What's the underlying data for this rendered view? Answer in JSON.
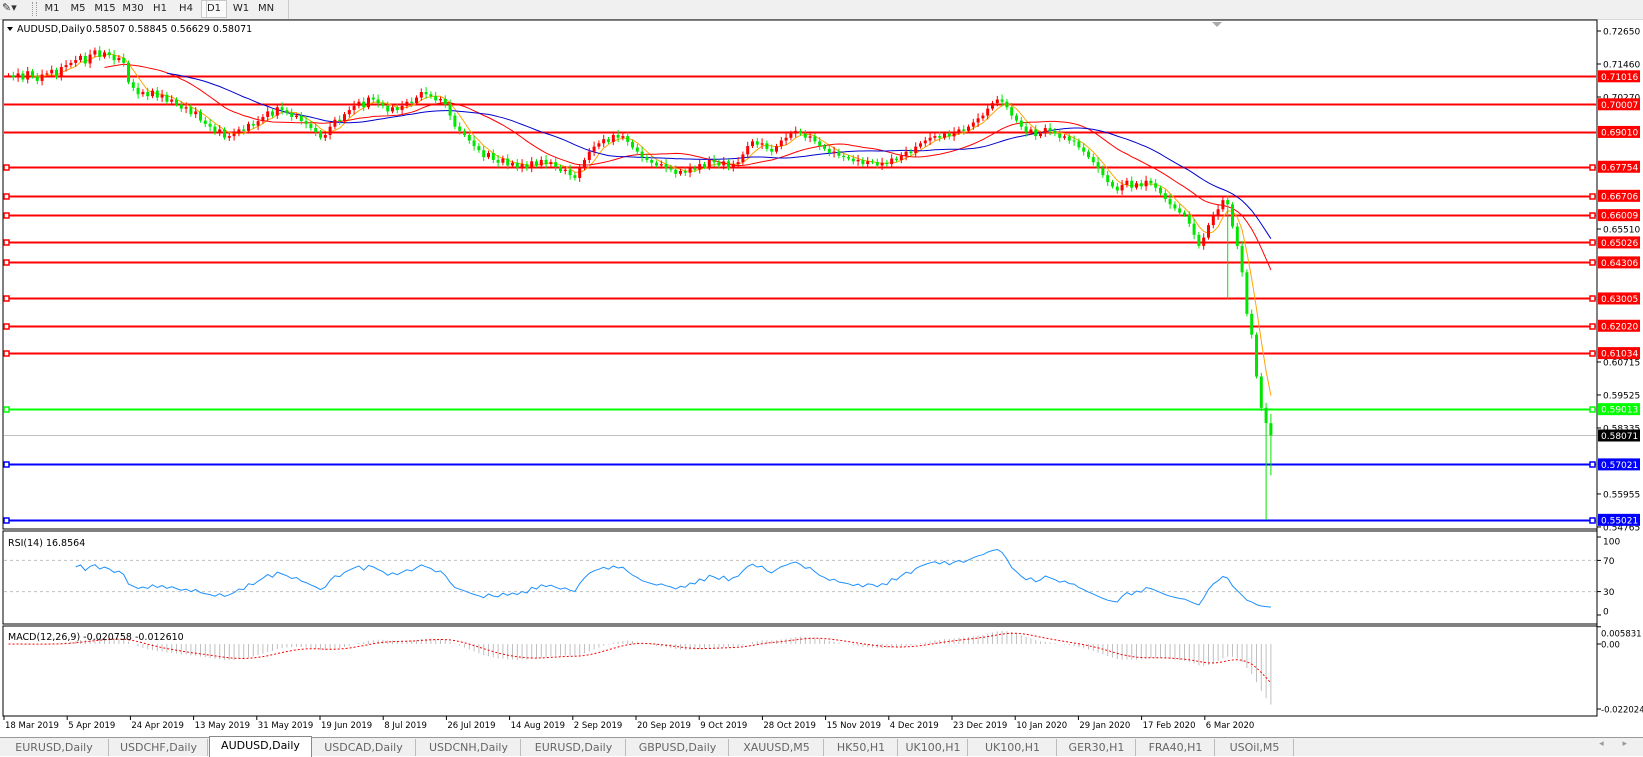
{
  "toolbar": {
    "tool_icon": "line-drawing-tool-icon",
    "timeframes": [
      "M1",
      "M5",
      "M15",
      "M30",
      "H1",
      "H4",
      "D1",
      "W1",
      "MN"
    ],
    "active_timeframe": "D1"
  },
  "chart": {
    "header": {
      "symbol": "AUDUSD,Daily",
      "ohlc": "0.58507 0.58845 0.56629 0.58071"
    },
    "last_bar": {
      "open": 0.58507,
      "high": 0.58845,
      "low": 0.56629,
      "close": 0.58071
    },
    "price_axis_ticks": [
      "0.72650",
      "0.71460",
      "0.70270",
      "0.65510",
      "0.60715",
      "0.59525",
      "0.58335",
      "0.55955",
      "0.54765"
    ],
    "price_range": [
      0.54765,
      0.7265
    ],
    "current_price": {
      "label": "0.58071",
      "color": "#000000"
    },
    "levels": [
      {
        "label": "0.71016",
        "color": "#ff0000",
        "markers": false
      },
      {
        "label": "0.70007",
        "color": "#ff0000",
        "markers": false
      },
      {
        "label": "0.69010",
        "color": "#ff0000",
        "markers": false
      },
      {
        "label": "0.67754",
        "color": "#ff0000",
        "markers": true
      },
      {
        "label": "0.66706",
        "color": "#ff0000",
        "markers": true
      },
      {
        "label": "0.66009",
        "color": "#ff0000",
        "markers": true
      },
      {
        "label": "0.65026",
        "color": "#ff0000",
        "markers": true
      },
      {
        "label": "0.64306",
        "color": "#ff0000",
        "markers": true
      },
      {
        "label": "0.63005",
        "color": "#ff0000",
        "markers": true
      },
      {
        "label": "0.62020",
        "color": "#ff0000",
        "markers": true
      },
      {
        "label": "0.61034",
        "color": "#ff0000",
        "markers": true
      },
      {
        "label": "0.59013",
        "color": "#00ff00",
        "markers": true
      },
      {
        "label": "0.57021",
        "color": "#0000ff",
        "markers": true
      },
      {
        "label": "0.55021",
        "color": "#0000ff",
        "markers": true
      }
    ],
    "candle_colors": {
      "bull": "#ff0000",
      "bear": "#00e600"
    },
    "moving_averages": [
      {
        "period": 5,
        "color": "#ffa500"
      },
      {
        "period": 21,
        "color": "#ff0000"
      },
      {
        "period": 34,
        "color": "#0000cc"
      }
    ],
    "closes": [
      0.7105,
      0.7098,
      0.7112,
      0.709,
      0.712,
      0.7101,
      0.7085,
      0.7108,
      0.7112,
      0.7125,
      0.7098,
      0.7135,
      0.7142,
      0.715,
      0.716,
      0.7175,
      0.7148,
      0.718,
      0.7195,
      0.7172,
      0.7188,
      0.7178,
      0.716,
      0.7168,
      0.715,
      0.708,
      0.706,
      0.7037,
      0.7045,
      0.703,
      0.705,
      0.7025,
      0.7035,
      0.701,
      0.7018,
      0.7,
      0.6985,
      0.699,
      0.6965,
      0.6975,
      0.6942,
      0.693,
      0.692,
      0.69,
      0.691,
      0.688,
      0.6886,
      0.6895,
      0.691,
      0.6905,
      0.693,
      0.6924,
      0.694,
      0.6955,
      0.6975,
      0.696,
      0.699,
      0.698,
      0.697,
      0.6955,
      0.696,
      0.694,
      0.693,
      0.6915,
      0.69,
      0.688,
      0.689,
      0.692,
      0.6945,
      0.694,
      0.6965,
      0.698,
      0.6995,
      0.701,
      0.699,
      0.7025,
      0.7018,
      0.7005,
      0.6995,
      0.6975,
      0.699,
      0.698,
      0.6995,
      0.701,
      0.7005,
      0.7025,
      0.7045,
      0.7037,
      0.703,
      0.7015,
      0.702,
      0.7,
      0.696,
      0.692,
      0.6905,
      0.689,
      0.687,
      0.685,
      0.6835,
      0.681,
      0.6825,
      0.68,
      0.679,
      0.6805,
      0.678,
      0.679,
      0.6772,
      0.6785,
      0.677,
      0.6795,
      0.678,
      0.68,
      0.6785,
      0.6792,
      0.6775,
      0.676,
      0.6765,
      0.6745,
      0.6735,
      0.677,
      0.68,
      0.683,
      0.6848,
      0.686,
      0.6875,
      0.6865,
      0.689,
      0.688,
      0.6886,
      0.6865,
      0.6845,
      0.683,
      0.681,
      0.68,
      0.679,
      0.678,
      0.6785,
      0.6772,
      0.6765,
      0.675,
      0.676,
      0.6754,
      0.677,
      0.6765,
      0.6785,
      0.6775,
      0.68,
      0.6792,
      0.678,
      0.6795,
      0.677,
      0.6785,
      0.6792,
      0.682,
      0.685,
      0.6867,
      0.6855,
      0.686,
      0.684,
      0.683,
      0.685,
      0.687,
      0.688,
      0.6895,
      0.6905,
      0.6895,
      0.688,
      0.6885,
      0.6867,
      0.685,
      0.684,
      0.6825,
      0.683,
      0.6815,
      0.681,
      0.6805,
      0.6795,
      0.68,
      0.6785,
      0.6795,
      0.6792,
      0.678,
      0.679,
      0.6785,
      0.6805,
      0.68,
      0.6815,
      0.683,
      0.6825,
      0.6848,
      0.686,
      0.687,
      0.688,
      0.6886,
      0.688,
      0.6895,
      0.6885,
      0.69,
      0.691,
      0.6905,
      0.692,
      0.6935,
      0.695,
      0.696,
      0.6985,
      0.7005,
      0.7018,
      0.701,
      0.699,
      0.696,
      0.6942,
      0.692,
      0.69,
      0.691,
      0.6886,
      0.6895,
      0.6915,
      0.6905,
      0.6895,
      0.688,
      0.6885,
      0.687,
      0.6867,
      0.6845,
      0.683,
      0.681,
      0.6792,
      0.677,
      0.6745,
      0.672,
      0.6704,
      0.669,
      0.671,
      0.6725,
      0.67,
      0.6716,
      0.6705,
      0.6725,
      0.6716,
      0.67,
      0.668,
      0.6659,
      0.664,
      0.6625,
      0.661,
      0.6602,
      0.657,
      0.653,
      0.649,
      0.652,
      0.6565,
      0.66,
      0.6622,
      0.6655,
      0.664,
      0.656,
      0.649,
      0.6395,
      0.6245,
      0.617,
      0.6019,
      0.5906,
      0.5851,
      0.5807
    ],
    "wick_lows": [
      [
        254,
        0.63
      ],
      [
        262,
        0.5502
      ]
    ],
    "date_labels": [
      "18 Mar 2019",
      "5 Apr 2019",
      "24 Apr 2019",
      "13 May 2019",
      "31 May 2019",
      "19 Jun 2019",
      "8 Jul 2019",
      "26 Jul 2019",
      "14 Aug 2019",
      "2 Sep 2019",
      "20 Sep 2019",
      "9 Oct 2019",
      "28 Oct 2019",
      "15 Nov 2019",
      "4 Dec 2019",
      "23 Dec 2019",
      "10 Jan 2020",
      "29 Jan 2020",
      "17 Feb 2020",
      "6 Mar 2020"
    ]
  },
  "rsi": {
    "title": "RSI(14) 16.8564",
    "period": 14,
    "levels": [
      70,
      30
    ],
    "ticks": [
      "100",
      "70",
      "30",
      "0"
    ],
    "color": "#1e90ff"
  },
  "macd": {
    "title": "MACD(12,26,9) -0.020758 -0.012610",
    "ticks": [
      "0.005831",
      "0.00",
      "-0.022024"
    ],
    "histogram_color": "#c0c0c0",
    "signal_color": "#ff0000"
  },
  "tabs": [
    {
      "label": "EURUSD,Daily"
    },
    {
      "label": "USDCHF,Daily"
    },
    {
      "label": "AUDUSD,Daily",
      "active": true
    },
    {
      "label": "USDCAD,Daily"
    },
    {
      "label": "USDCNH,Daily"
    },
    {
      "label": "EURUSD,Daily"
    },
    {
      "label": "GBPUSD,Daily"
    },
    {
      "label": "XAUUSD,M5"
    },
    {
      "label": "HK50,H1"
    },
    {
      "label": "UK100,H1"
    },
    {
      "label": "UK100,H1"
    },
    {
      "label": "GER30,H1"
    },
    {
      "label": "FRA40,H1"
    },
    {
      "label": "USOil,M5"
    }
  ],
  "tab_scroll": "◂ ▸"
}
